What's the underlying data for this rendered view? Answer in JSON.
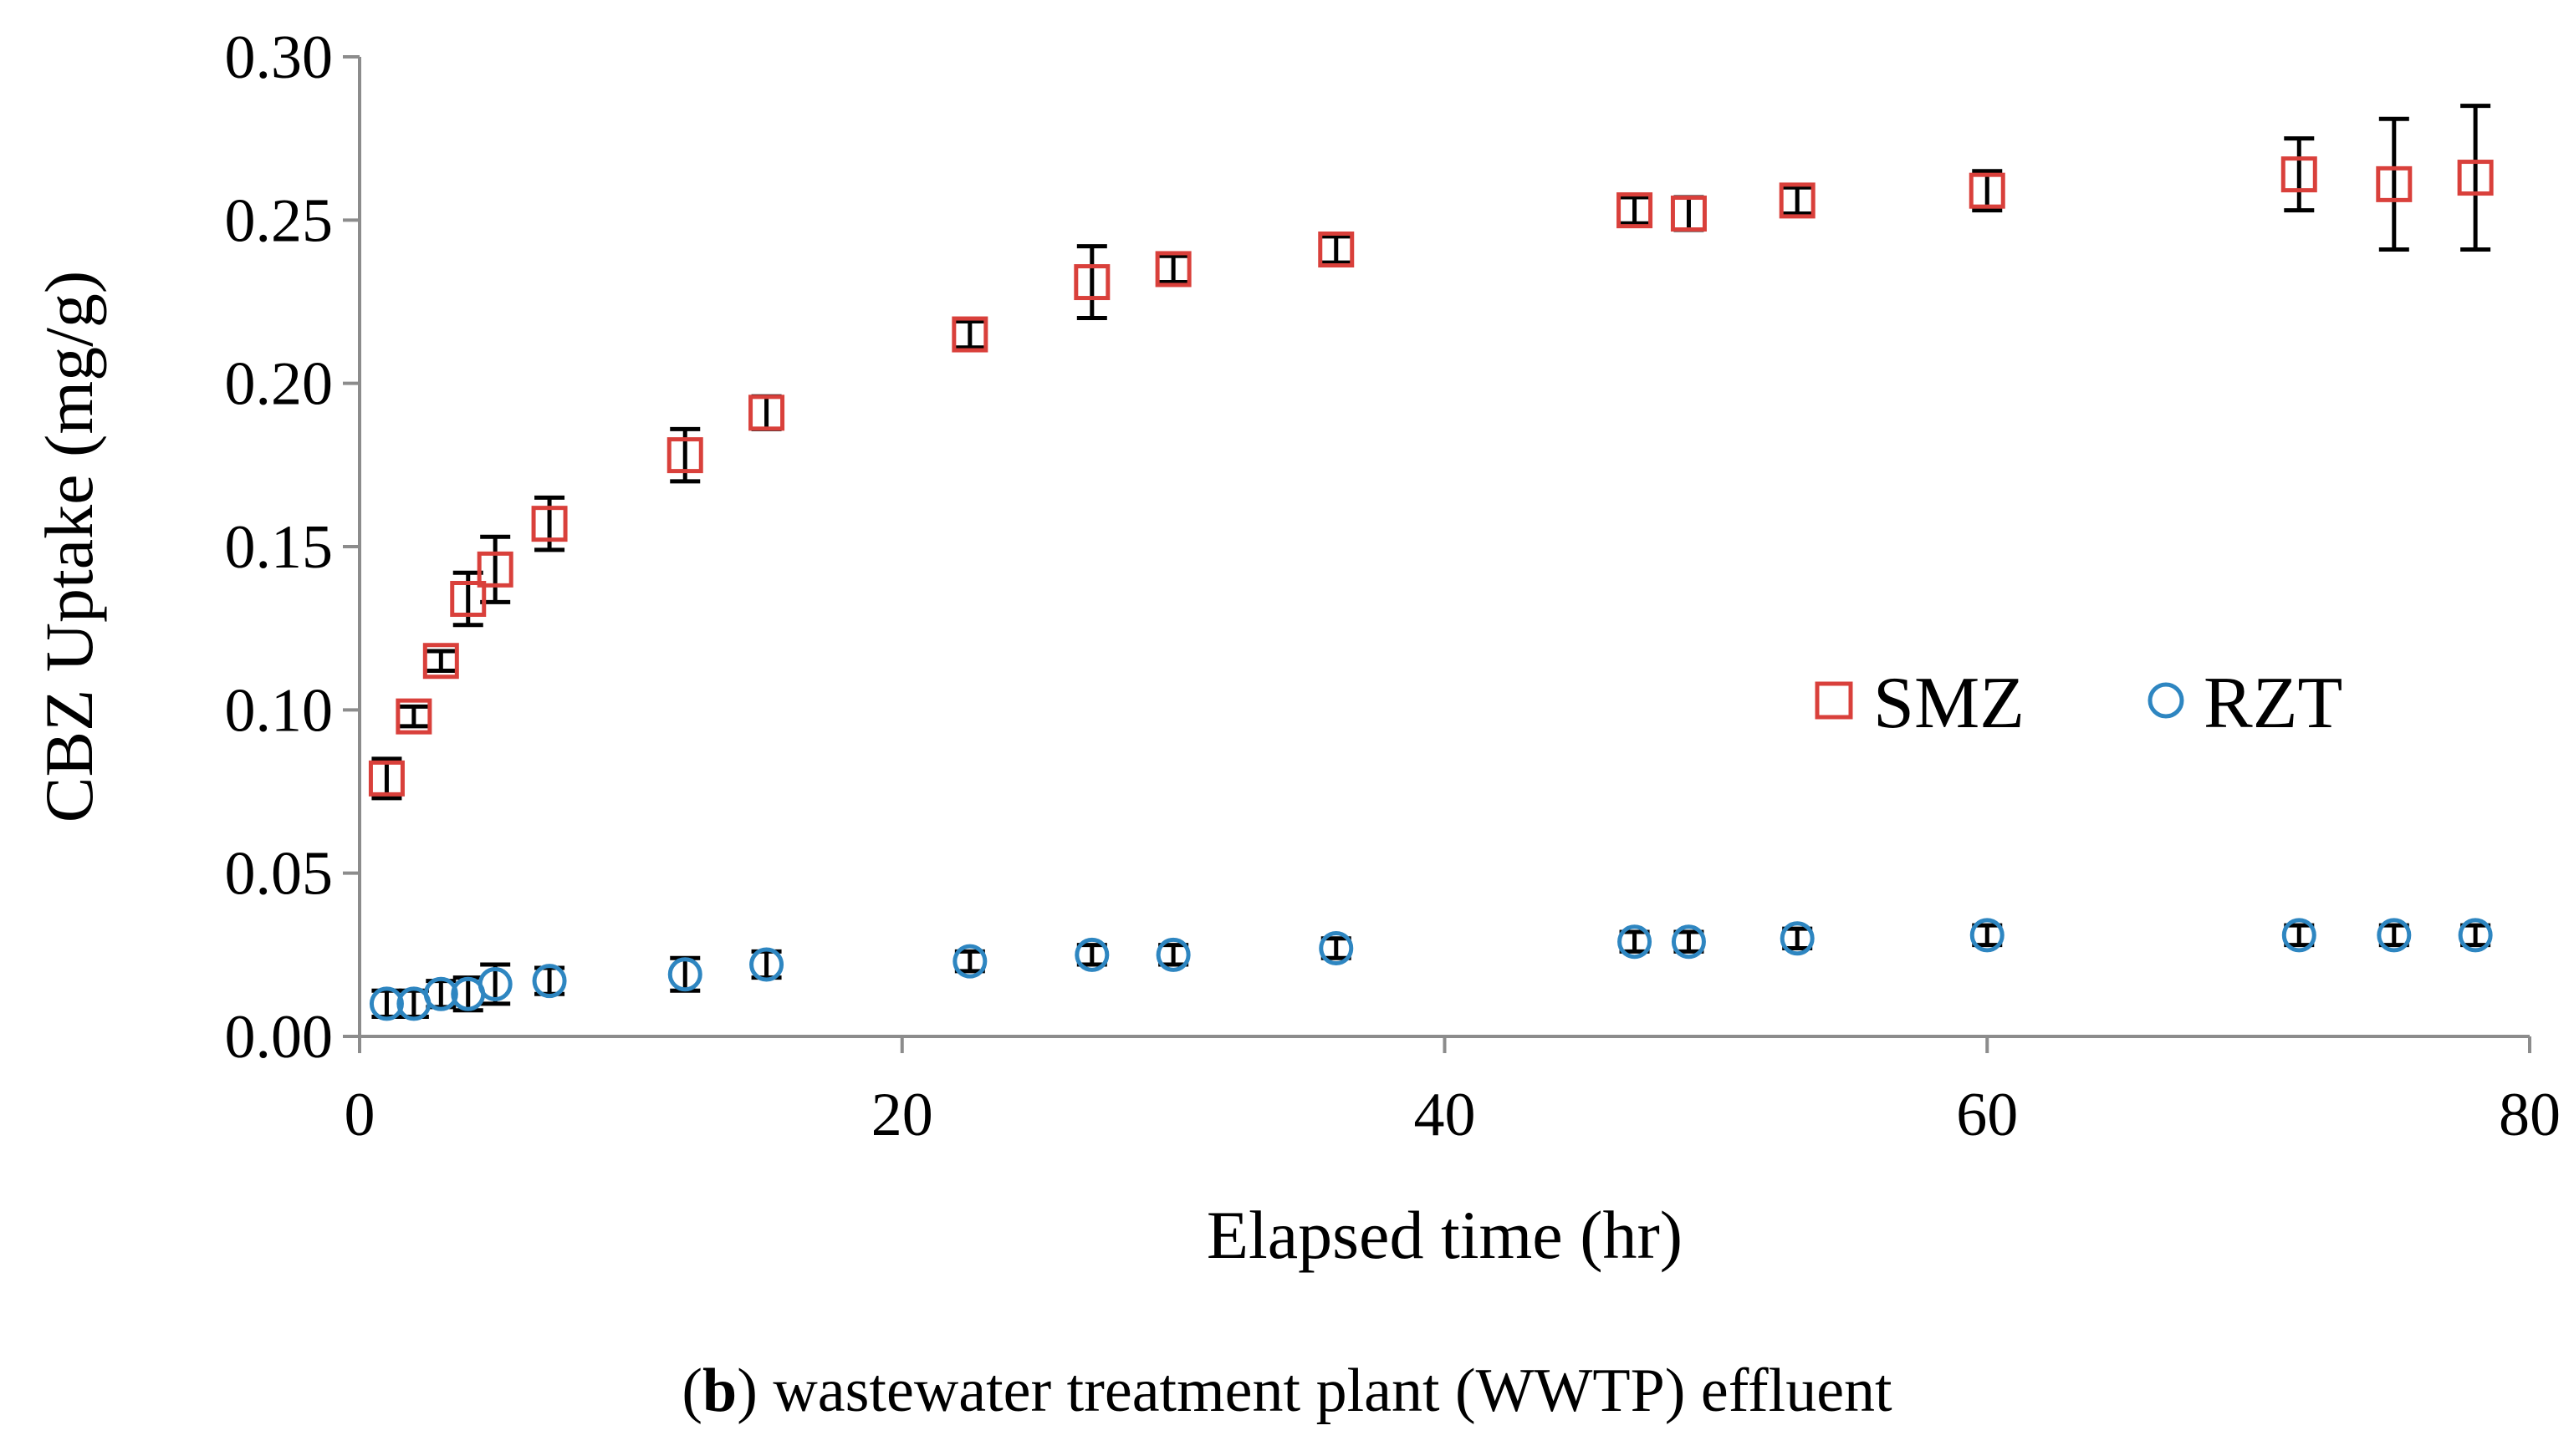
{
  "chart_data": {
    "type": "scatter",
    "title": "",
    "xlabel": "Elapsed time (hr)",
    "ylabel": "CBZ Uptake (mg/g)",
    "xlim": [
      0,
      80
    ],
    "ylim": [
      0,
      0.3
    ],
    "xticks": [
      "0",
      "20",
      "40",
      "60",
      "80"
    ],
    "xtick_values": [
      0,
      20,
      40,
      60,
      80
    ],
    "yticks": [
      "0.00",
      "0.05",
      "0.10",
      "0.15",
      "0.20",
      "0.25",
      "0.30"
    ],
    "ytick_values": [
      0,
      0.05,
      0.1,
      0.15,
      0.2,
      0.25,
      0.3
    ],
    "grid": false,
    "legend_position": "center-right",
    "series": [
      {
        "name": "SMZ",
        "marker": "square",
        "color": "#d9403b",
        "x": [
          1,
          2,
          3,
          4,
          5,
          7,
          12,
          15,
          22.5,
          27,
          30,
          36,
          47,
          49,
          53,
          60,
          71.5,
          75,
          78
        ],
        "y": [
          0.079,
          0.098,
          0.115,
          0.134,
          0.143,
          0.157,
          0.178,
          0.191,
          0.215,
          0.231,
          0.235,
          0.241,
          0.253,
          0.252,
          0.256,
          0.259,
          0.264,
          0.261,
          0.263
        ],
        "err": [
          0.006,
          0.003,
          0.003,
          0.008,
          0.01,
          0.008,
          0.008,
          0.005,
          0.004,
          0.011,
          0.004,
          0.004,
          0.004,
          0.005,
          0.004,
          0.006,
          0.011,
          0.02,
          0.022
        ]
      },
      {
        "name": "RZT",
        "marker": "circle",
        "color": "#2e86c1",
        "x": [
          1,
          2,
          3,
          4,
          5,
          7,
          12,
          15,
          22.5,
          27,
          30,
          36,
          47,
          49,
          53,
          60,
          71.5,
          75,
          78
        ],
        "y": [
          0.01,
          0.01,
          0.013,
          0.013,
          0.016,
          0.017,
          0.019,
          0.022,
          0.023,
          0.025,
          0.025,
          0.027,
          0.029,
          0.029,
          0.03,
          0.031,
          0.031,
          0.031,
          0.031
        ],
        "err": [
          0.004,
          0.004,
          0.004,
          0.005,
          0.006,
          0.004,
          0.005,
          0.004,
          0.003,
          0.003,
          0.003,
          0.003,
          0.003,
          0.003,
          0.003,
          0.003,
          0.003,
          0.003,
          0.003
        ]
      }
    ]
  },
  "caption": {
    "letter": "b",
    "open_paren": "(",
    "text": ") wastewater treatment plant (WWTP) effluent"
  }
}
